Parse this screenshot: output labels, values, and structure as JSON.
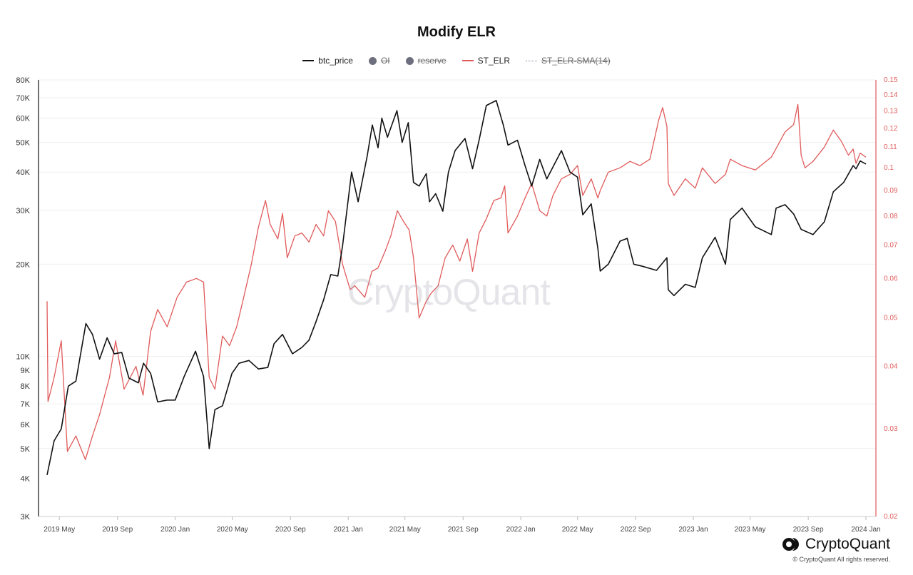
{
  "title": "Modify ELR",
  "legend": [
    {
      "label": "btc_price",
      "type": "line",
      "color": "#111111",
      "enabled": true
    },
    {
      "label": "OI",
      "type": "dot",
      "color": "#6e6f7e",
      "enabled": false
    },
    {
      "label": "reserve",
      "type": "dot",
      "color": "#6e6f7e",
      "enabled": false
    },
    {
      "label": "ST_ELR",
      "type": "line",
      "color": "#e05a5a",
      "enabled": true
    },
    {
      "label": "ST_ELR-SMA(14)",
      "type": "dotted",
      "color": "#8a8fa8",
      "enabled": false
    }
  ],
  "watermark": "CryptoQuant",
  "brand": {
    "name": "CryptoQuant",
    "copyright": "© CryptoQuant All rights reserved."
  },
  "colors": {
    "price": "#111111",
    "elr": "#e05a5a",
    "grid": "#efefef",
    "axis": "#cccccc"
  },
  "chart_data": {
    "type": "line",
    "title": "Modify ELR",
    "x_axis": {
      "start": "2019-04-05",
      "end": "2024-01-01",
      "ticks": [
        {
          "date": "2019-05-01",
          "label": "2019 May"
        },
        {
          "date": "2019-09-01",
          "label": "2019 Sep"
        },
        {
          "date": "2020-01-01",
          "label": "2020 Jan"
        },
        {
          "date": "2020-05-01",
          "label": "2020 May"
        },
        {
          "date": "2020-09-01",
          "label": "2020 Sep"
        },
        {
          "date": "2021-01-01",
          "label": "2021 Jan"
        },
        {
          "date": "2021-05-01",
          "label": "2021 May"
        },
        {
          "date": "2021-09-01",
          "label": "2021 Sep"
        },
        {
          "date": "2022-01-01",
          "label": "2022 Jan"
        },
        {
          "date": "2022-05-01",
          "label": "2022 May"
        },
        {
          "date": "2022-09-01",
          "label": "2022 Sep"
        },
        {
          "date": "2023-01-01",
          "label": "2023 Jan"
        },
        {
          "date": "2023-05-01",
          "label": "2023 May"
        },
        {
          "date": "2023-09-01",
          "label": "2023 Sep"
        },
        {
          "date": "2024-01-01",
          "label": "2024 Jan"
        }
      ]
    },
    "y_left": {
      "scale": "log",
      "min": 3000,
      "max": 80000,
      "ticks": [
        {
          "value": 3000,
          "label": "3K"
        },
        {
          "value": 4000,
          "label": "4K"
        },
        {
          "value": 5000,
          "label": "5K"
        },
        {
          "value": 6000,
          "label": "6K"
        },
        {
          "value": 7000,
          "label": "7K"
        },
        {
          "value": 8000,
          "label": "8K"
        },
        {
          "value": 9000,
          "label": "9K"
        },
        {
          "value": 10000,
          "label": "10K"
        },
        {
          "value": 20000,
          "label": "20K"
        },
        {
          "value": 30000,
          "label": "30K"
        },
        {
          "value": 40000,
          "label": "40K"
        },
        {
          "value": 50000,
          "label": "50K"
        },
        {
          "value": 60000,
          "label": "60K"
        },
        {
          "value": 70000,
          "label": "70K"
        },
        {
          "value": 80000,
          "label": "80K"
        }
      ]
    },
    "y_right": {
      "scale": "log",
      "min": 0.02,
      "max": 0.15,
      "ticks": [
        {
          "value": 0.02,
          "label": "0.02"
        },
        {
          "value": 0.03,
          "label": "0.03"
        },
        {
          "value": 0.04,
          "label": "0.04"
        },
        {
          "value": 0.05,
          "label": "0.05"
        },
        {
          "value": 0.06,
          "label": "0.06"
        },
        {
          "value": 0.07,
          "label": "0.07"
        },
        {
          "value": 0.08,
          "label": "0.08"
        },
        {
          "value": 0.09,
          "label": "0.09"
        },
        {
          "value": 0.1,
          "label": "0.1"
        },
        {
          "value": 0.11,
          "label": "0.11"
        },
        {
          "value": 0.12,
          "label": "0.12"
        },
        {
          "value": 0.13,
          "label": "0.13"
        },
        {
          "value": 0.14,
          "label": "0.14"
        },
        {
          "value": 0.15,
          "label": "0.15"
        }
      ]
    },
    "series": [
      {
        "name": "btc_price",
        "axis": "left",
        "color": "#111111",
        "points": [
          [
            "2019-04-05",
            4100
          ],
          [
            "2019-04-20",
            5300
          ],
          [
            "2019-05-05",
            5800
          ],
          [
            "2019-05-20",
            8000
          ],
          [
            "2019-06-05",
            8300
          ],
          [
            "2019-06-26",
            12800
          ],
          [
            "2019-07-10",
            11800
          ],
          [
            "2019-07-25",
            9800
          ],
          [
            "2019-08-10",
            11500
          ],
          [
            "2019-08-25",
            10200
          ],
          [
            "2019-09-10",
            10300
          ],
          [
            "2019-09-25",
            8500
          ],
          [
            "2019-10-15",
            8200
          ],
          [
            "2019-10-26",
            9500
          ],
          [
            "2019-11-10",
            8800
          ],
          [
            "2019-11-25",
            7100
          ],
          [
            "2019-12-15",
            7200
          ],
          [
            "2020-01-01",
            7200
          ],
          [
            "2020-01-20",
            8600
          ],
          [
            "2020-02-13",
            10400
          ],
          [
            "2020-03-01",
            8600
          ],
          [
            "2020-03-13",
            5000
          ],
          [
            "2020-03-25",
            6700
          ],
          [
            "2020-04-10",
            6900
          ],
          [
            "2020-04-30",
            8800
          ],
          [
            "2020-05-15",
            9500
          ],
          [
            "2020-06-05",
            9700
          ],
          [
            "2020-06-25",
            9100
          ],
          [
            "2020-07-15",
            9200
          ],
          [
            "2020-07-28",
            11000
          ],
          [
            "2020-08-15",
            11800
          ],
          [
            "2020-09-05",
            10200
          ],
          [
            "2020-09-25",
            10700
          ],
          [
            "2020-10-10",
            11300
          ],
          [
            "2020-10-25",
            13000
          ],
          [
            "2020-11-10",
            15300
          ],
          [
            "2020-11-25",
            18500
          ],
          [
            "2020-12-10",
            18300
          ],
          [
            "2020-12-20",
            23000
          ],
          [
            "2021-01-08",
            40000
          ],
          [
            "2021-01-22",
            32000
          ],
          [
            "2021-02-10",
            45000
          ],
          [
            "2021-02-21",
            57000
          ],
          [
            "2021-03-05",
            48000
          ],
          [
            "2021-03-13",
            60000
          ],
          [
            "2021-03-25",
            52000
          ],
          [
            "2021-04-14",
            63500
          ],
          [
            "2021-04-25",
            50000
          ],
          [
            "2021-05-08",
            58000
          ],
          [
            "2021-05-19",
            37000
          ],
          [
            "2021-05-31",
            36000
          ],
          [
            "2021-06-15",
            39500
          ],
          [
            "2021-06-22",
            32000
          ],
          [
            "2021-07-05",
            34000
          ],
          [
            "2021-07-20",
            29800
          ],
          [
            "2021-08-01",
            40000
          ],
          [
            "2021-08-15",
            47000
          ],
          [
            "2021-09-05",
            51500
          ],
          [
            "2021-09-21",
            41000
          ],
          [
            "2021-10-05",
            51000
          ],
          [
            "2021-10-20",
            66000
          ],
          [
            "2021-11-10",
            68500
          ],
          [
            "2021-11-25",
            57000
          ],
          [
            "2021-12-05",
            49000
          ],
          [
            "2021-12-25",
            50800
          ],
          [
            "2022-01-10",
            42000
          ],
          [
            "2022-01-24",
            36000
          ],
          [
            "2022-02-10",
            44000
          ],
          [
            "2022-02-25",
            38000
          ],
          [
            "2022-03-28",
            47000
          ],
          [
            "2022-04-15",
            40000
          ],
          [
            "2022-05-01",
            38500
          ],
          [
            "2022-05-12",
            29000
          ],
          [
            "2022-05-30",
            31500
          ],
          [
            "2022-06-13",
            22500
          ],
          [
            "2022-06-18",
            19000
          ],
          [
            "2022-07-05",
            20000
          ],
          [
            "2022-07-30",
            23800
          ],
          [
            "2022-08-14",
            24300
          ],
          [
            "2022-08-28",
            20000
          ],
          [
            "2022-09-15",
            19700
          ],
          [
            "2022-10-15",
            19100
          ],
          [
            "2022-11-06",
            21000
          ],
          [
            "2022-11-09",
            16500
          ],
          [
            "2022-11-21",
            15800
          ],
          [
            "2022-12-15",
            17200
          ],
          [
            "2023-01-05",
            16800
          ],
          [
            "2023-01-20",
            21000
          ],
          [
            "2023-02-16",
            24500
          ],
          [
            "2023-03-10",
            20000
          ],
          [
            "2023-03-20",
            28000
          ],
          [
            "2023-04-14",
            30500
          ],
          [
            "2023-05-12",
            26500
          ],
          [
            "2023-06-15",
            25000
          ],
          [
            "2023-06-25",
            30500
          ],
          [
            "2023-07-14",
            31300
          ],
          [
            "2023-08-01",
            29200
          ],
          [
            "2023-08-17",
            26000
          ],
          [
            "2023-09-11",
            25000
          ],
          [
            "2023-10-05",
            27500
          ],
          [
            "2023-10-24",
            34500
          ],
          [
            "2023-11-15",
            37000
          ],
          [
            "2023-12-05",
            42000
          ],
          [
            "2023-12-11",
            41000
          ],
          [
            "2023-12-20",
            43500
          ],
          [
            "2024-01-01",
            42500
          ]
        ]
      },
      {
        "name": "ST_ELR",
        "axis": "right",
        "color": "#e05a5a",
        "points": [
          [
            "2019-04-05",
            0.054
          ],
          [
            "2019-04-07",
            0.034
          ],
          [
            "2019-04-20",
            0.038
          ],
          [
            "2019-05-05",
            0.045
          ],
          [
            "2019-05-18",
            0.027
          ],
          [
            "2019-06-05",
            0.029
          ],
          [
            "2019-06-25",
            0.026
          ],
          [
            "2019-07-10",
            0.029
          ],
          [
            "2019-07-25",
            0.032
          ],
          [
            "2019-08-15",
            0.038
          ],
          [
            "2019-08-28",
            0.045
          ],
          [
            "2019-09-15",
            0.036
          ],
          [
            "2019-10-10",
            0.04
          ],
          [
            "2019-10-25",
            0.035
          ],
          [
            "2019-11-10",
            0.047
          ],
          [
            "2019-11-25",
            0.052
          ],
          [
            "2019-12-15",
            0.048
          ],
          [
            "2020-01-05",
            0.055
          ],
          [
            "2020-01-25",
            0.059
          ],
          [
            "2020-02-15",
            0.06
          ],
          [
            "2020-03-01",
            0.059
          ],
          [
            "2020-03-13",
            0.038
          ],
          [
            "2020-03-25",
            0.036
          ],
          [
            "2020-04-10",
            0.046
          ],
          [
            "2020-04-25",
            0.044
          ],
          [
            "2020-05-10",
            0.048
          ],
          [
            "2020-05-25",
            0.055
          ],
          [
            "2020-06-10",
            0.064
          ],
          [
            "2020-06-25",
            0.076
          ],
          [
            "2020-07-10",
            0.086
          ],
          [
            "2020-07-20",
            0.077
          ],
          [
            "2020-08-05",
            0.072
          ],
          [
            "2020-08-15",
            0.081
          ],
          [
            "2020-08-25",
            0.066
          ],
          [
            "2020-09-10",
            0.073
          ],
          [
            "2020-09-25",
            0.074
          ],
          [
            "2020-10-10",
            0.071
          ],
          [
            "2020-10-25",
            0.077
          ],
          [
            "2020-11-10",
            0.073
          ],
          [
            "2020-11-20",
            0.082
          ],
          [
            "2020-12-05",
            0.078
          ],
          [
            "2020-12-20",
            0.064
          ],
          [
            "2021-01-05",
            0.057
          ],
          [
            "2021-01-15",
            0.058
          ],
          [
            "2021-02-05",
            0.055
          ],
          [
            "2021-02-20",
            0.062
          ],
          [
            "2021-03-05",
            0.063
          ],
          [
            "2021-03-20",
            0.068
          ],
          [
            "2021-04-01",
            0.073
          ],
          [
            "2021-04-15",
            0.082
          ],
          [
            "2021-04-28",
            0.078
          ],
          [
            "2021-05-10",
            0.075
          ],
          [
            "2021-05-19",
            0.066
          ],
          [
            "2021-05-31",
            0.05
          ],
          [
            "2021-06-15",
            0.054
          ],
          [
            "2021-06-25",
            0.056
          ],
          [
            "2021-07-10",
            0.058
          ],
          [
            "2021-07-25",
            0.066
          ],
          [
            "2021-08-10",
            0.07
          ],
          [
            "2021-08-25",
            0.065
          ],
          [
            "2021-09-10",
            0.072
          ],
          [
            "2021-09-21",
            0.062
          ],
          [
            "2021-10-05",
            0.074
          ],
          [
            "2021-10-20",
            0.079
          ],
          [
            "2021-11-05",
            0.086
          ],
          [
            "2021-11-20",
            0.087
          ],
          [
            "2021-11-28",
            0.092
          ],
          [
            "2021-12-05",
            0.074
          ],
          [
            "2021-12-25",
            0.08
          ],
          [
            "2022-01-10",
            0.087
          ],
          [
            "2022-01-24",
            0.093
          ],
          [
            "2022-02-10",
            0.082
          ],
          [
            "2022-02-25",
            0.08
          ],
          [
            "2022-03-10",
            0.088
          ],
          [
            "2022-03-28",
            0.095
          ],
          [
            "2022-04-15",
            0.097
          ],
          [
            "2022-05-01",
            0.101
          ],
          [
            "2022-05-12",
            0.088
          ],
          [
            "2022-05-30",
            0.095
          ],
          [
            "2022-06-13",
            0.087
          ],
          [
            "2022-06-18",
            0.09
          ],
          [
            "2022-07-05",
            0.098
          ],
          [
            "2022-07-30",
            0.1
          ],
          [
            "2022-08-20",
            0.103
          ],
          [
            "2022-09-10",
            0.101
          ],
          [
            "2022-10-01",
            0.104
          ],
          [
            "2022-10-20",
            0.125
          ],
          [
            "2022-10-28",
            0.132
          ],
          [
            "2022-11-06",
            0.121
          ],
          [
            "2022-11-09",
            0.093
          ],
          [
            "2022-11-21",
            0.088
          ],
          [
            "2022-12-15",
            0.095
          ],
          [
            "2023-01-05",
            0.091
          ],
          [
            "2023-01-20",
            0.1
          ],
          [
            "2023-02-16",
            0.093
          ],
          [
            "2023-03-10",
            0.097
          ],
          [
            "2023-03-20",
            0.104
          ],
          [
            "2023-04-14",
            0.101
          ],
          [
            "2023-05-12",
            0.099
          ],
          [
            "2023-06-15",
            0.105
          ],
          [
            "2023-07-14",
            0.118
          ],
          [
            "2023-08-01",
            0.122
          ],
          [
            "2023-08-10",
            0.134
          ],
          [
            "2023-08-17",
            0.106
          ],
          [
            "2023-08-25",
            0.1
          ],
          [
            "2023-09-11",
            0.103
          ],
          [
            "2023-10-05",
            0.11
          ],
          [
            "2023-10-24",
            0.119
          ],
          [
            "2023-11-10",
            0.113
          ],
          [
            "2023-11-25",
            0.106
          ],
          [
            "2023-12-05",
            0.109
          ],
          [
            "2023-12-11",
            0.102
          ],
          [
            "2023-12-20",
            0.107
          ],
          [
            "2024-01-01",
            0.105
          ]
        ]
      }
    ]
  }
}
